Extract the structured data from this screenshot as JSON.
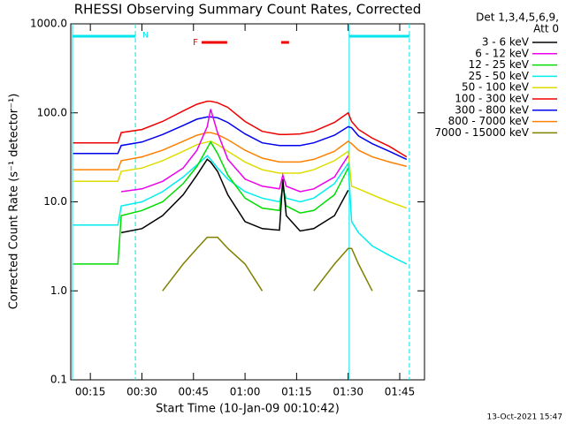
{
  "chart_data": {
    "type": "line",
    "title": "RHESSI Observing Summary Count Rates, Corrected",
    "x_label": "Start Time (10-Jan-09 00:10:42)",
    "y_label": "Corrected Count Rate (s⁻¹ detector⁻¹)",
    "legend_header": [
      "Det 1,3,4,5,6,9,",
      "Att 0"
    ],
    "timestamp": "13-Oct-2021 15:47",
    "log_y": true,
    "xlim": [
      9.3,
      112.2
    ],
    "xticks": [
      {
        "value": 15,
        "label": "00:15"
      },
      {
        "value": 30,
        "label": "00:30"
      },
      {
        "value": 45,
        "label": "00:45"
      },
      {
        "value": 60,
        "label": "01:00"
      },
      {
        "value": 75,
        "label": "01:15"
      },
      {
        "value": 90,
        "label": "01:30"
      },
      {
        "value": 105,
        "label": "01:45"
      }
    ],
    "ylim": [
      0.1,
      1000
    ],
    "yticks": [
      0.1,
      {
        "value": 1,
        "label": "1.0"
      },
      {
        "value": 10,
        "label": "10.0"
      },
      {
        "value": 100,
        "label": "100.0"
      },
      {
        "value": 1000,
        "label": "1000.0"
      }
    ],
    "night_label": "N",
    "night_color": "#00e5ee",
    "night_intervals": [
      [
        9.8,
        28.1
      ],
      [
        90.3,
        107.8
      ]
    ],
    "flare_label": "F",
    "flare_color": "#ee0000",
    "flare_intervals": [
      [
        47.4,
        54.8
      ],
      [
        70.5,
        72.8
      ]
    ],
    "x": [
      10,
      16,
      23,
      24,
      30,
      36,
      42,
      46,
      49,
      50,
      52,
      55,
      60,
      65,
      70,
      71,
      72,
      76,
      80,
      86,
      90,
      91,
      93,
      97,
      102,
      107
    ],
    "series": [
      {
        "name": "3 - 6 keV",
        "color": "#000000",
        "values": [
          null,
          null,
          null,
          4.5,
          5,
          7,
          12,
          20,
          30,
          28,
          22,
          12,
          6,
          5,
          4.8,
          18,
          7,
          4.7,
          5,
          7,
          13.5,
          null,
          null,
          null,
          null,
          null
        ]
      },
      {
        "name": "6 - 12 keV",
        "color": "#ee00ee",
        "values": [
          null,
          null,
          null,
          13,
          14,
          17,
          24,
          38,
          70,
          110,
          60,
          30,
          18,
          15,
          14,
          20,
          15,
          13,
          14,
          19,
          33,
          null,
          null,
          null,
          null,
          null
        ]
      },
      {
        "name": "12 - 25 keV",
        "color": "#00dd00",
        "values": [
          2,
          2,
          2,
          7,
          8,
          10,
          16,
          25,
          40,
          47,
          35,
          20,
          11,
          8.5,
          8,
          16,
          9,
          7.5,
          8,
          12,
          24,
          null,
          null,
          null,
          null,
          null
        ]
      },
      {
        "name": "25 - 50 keV",
        "color": "#00eeee",
        "values": [
          5.5,
          5.5,
          5.5,
          9,
          10,
          13,
          19,
          26,
          33,
          30,
          24,
          18,
          13,
          11,
          10,
          14,
          11,
          10,
          11,
          16,
          27,
          6,
          4.5,
          3.2,
          2.5,
          2
        ]
      },
      {
        "name": "50 - 100 keV",
        "color": "#dddd00",
        "values": [
          17,
          17,
          17,
          22,
          24,
          29,
          37,
          44,
          47,
          48,
          44,
          37,
          28,
          23,
          21,
          21,
          21,
          21,
          23,
          29,
          37,
          15,
          14,
          12,
          10,
          8.5
        ]
      },
      {
        "name": "100 - 300 keV",
        "color": "#ee0000",
        "values": [
          46,
          46,
          46,
          60,
          65,
          80,
          105,
          125,
          135,
          135,
          130,
          115,
          80,
          62,
          57,
          57,
          57,
          58,
          62,
          78,
          100,
          80,
          65,
          52,
          42,
          32
        ]
      },
      {
        "name": "300 - 800 keV",
        "color": "#0000ee",
        "values": [
          35,
          35,
          35,
          43,
          47,
          57,
          72,
          85,
          90,
          90,
          88,
          78,
          58,
          46,
          43,
          43,
          43,
          43,
          46,
          56,
          70,
          68,
          55,
          45,
          37,
          30
        ]
      },
      {
        "name": "800 - 7000 keV",
        "color": "#ff8000",
        "values": [
          23,
          23,
          23,
          29,
          32,
          38,
          48,
          56,
          60,
          60,
          57,
          50,
          38,
          31,
          28,
          28,
          28,
          28,
          30,
          37,
          48,
          45,
          38,
          32,
          28,
          25
        ]
      },
      {
        "name": "7000 - 15000 keV",
        "color": "#808000",
        "values": [
          null,
          null,
          null,
          null,
          null,
          1,
          2,
          3,
          4,
          4,
          4,
          3,
          2,
          1,
          null,
          null,
          null,
          null,
          1,
          2,
          3,
          3,
          2,
          1,
          null,
          null
        ]
      }
    ]
  }
}
